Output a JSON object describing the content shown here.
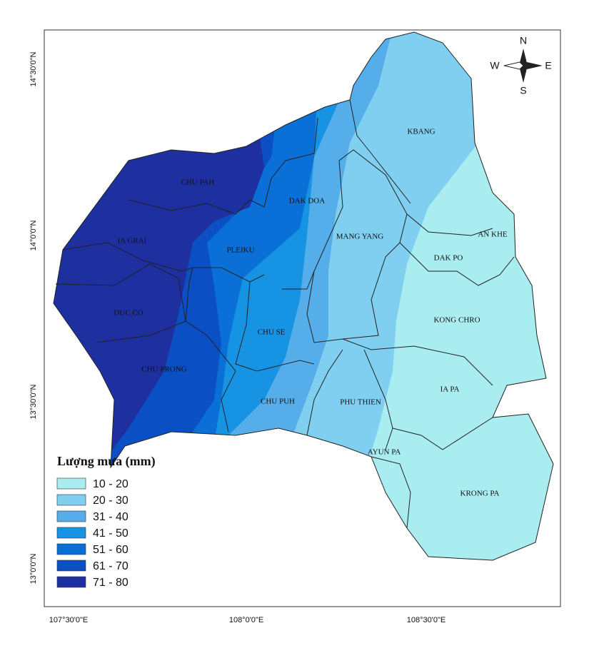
{
  "legend": {
    "title": "Lượng mưa (mm)",
    "items": [
      {
        "label": "10 - 20",
        "color": "#a9edf0"
      },
      {
        "label": "20 - 30",
        "color": "#80cff0"
      },
      {
        "label": "31 - 40",
        "color": "#55aee9"
      },
      {
        "label": "41 - 50",
        "color": "#1693e2"
      },
      {
        "label": "51 - 60",
        "color": "#0a70d8"
      },
      {
        "label": "61 - 70",
        "color": "#0a50c4"
      },
      {
        "label": "71 - 80",
        "color": "#1e2fa0"
      }
    ]
  },
  "districts": [
    "CHU PAH",
    "KBANG",
    "DAK DOA",
    "IA GRAI",
    "PLEIKU",
    "MANG YANG",
    "AN KHE",
    "DAK PO",
    "DUC CO",
    "CHU SE",
    "KONG CHRO",
    "CHU PRONG",
    "IA PA",
    "CHU PUH",
    "PHU THIEN",
    "AYUN PA",
    "KRONG PA"
  ],
  "graticule": {
    "latitudes": [
      "14°30'0\"N",
      "14°0'0\"N",
      "13°30'0\"N",
      "13°0'0\"N"
    ],
    "longitudes": [
      "107°30'0\"E",
      "108°0'0\"E",
      "108°30'0\"E"
    ]
  },
  "compass": {
    "north": "N",
    "south": "S",
    "east": "E",
    "west": "W"
  }
}
